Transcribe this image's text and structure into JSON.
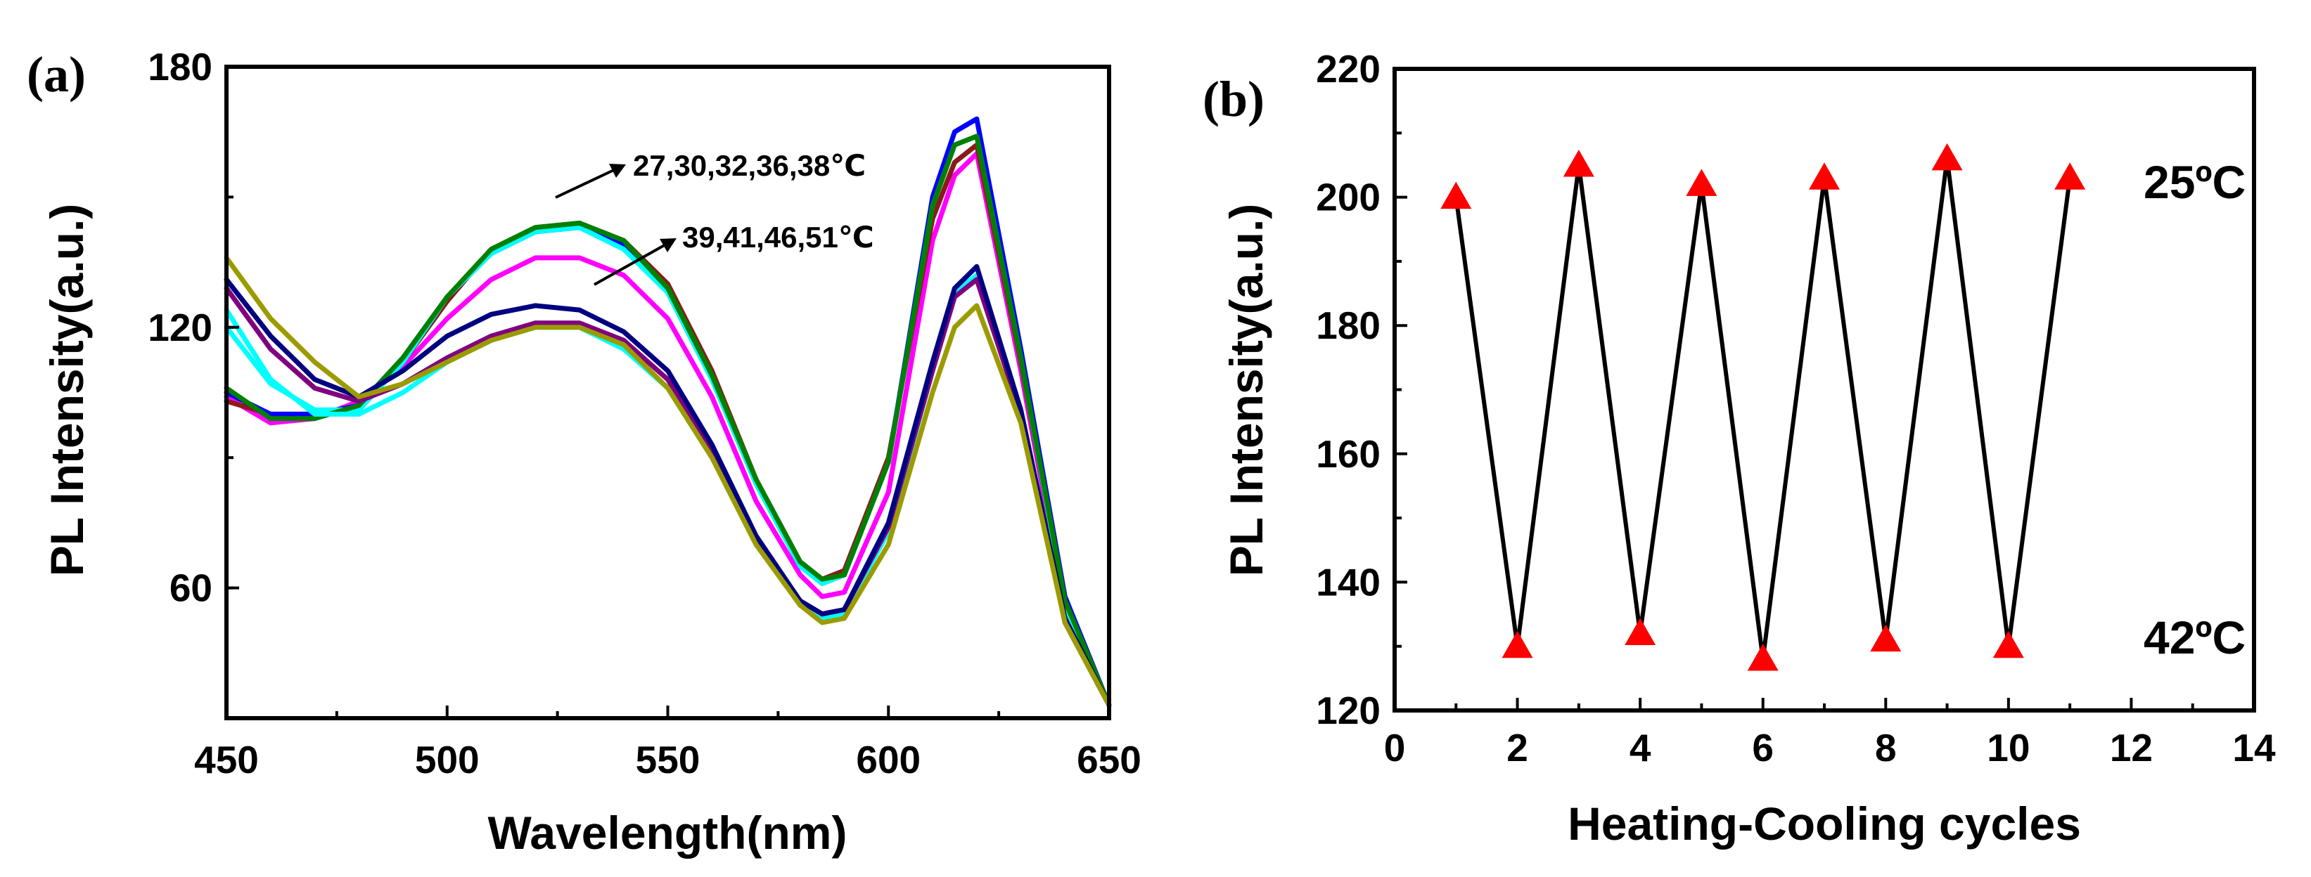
{
  "chart_data": [
    {
      "panel": "(a)",
      "type": "line",
      "title": "",
      "xlabel": "Wavelength(nm)",
      "ylabel": "PL Intensity(a.u.)",
      "xlim": [
        450,
        650
      ],
      "ylim": [
        30,
        180
      ],
      "xticks": [
        450,
        500,
        550,
        600,
        650
      ],
      "yticks": [
        60,
        120,
        180
      ],
      "grid": false,
      "x": [
        450,
        460,
        470,
        480,
        490,
        500,
        510,
        520,
        530,
        540,
        550,
        560,
        570,
        580,
        585,
        590,
        600,
        610,
        615,
        620,
        630,
        640,
        650
      ],
      "series": [
        {
          "name": "27",
          "color": "#ff00ff",
          "values": [
            104,
            98,
            99,
            103,
            111,
            122,
            131,
            136,
            136,
            132,
            122,
            104,
            80,
            63,
            58,
            59,
            82,
            140,
            155,
            160,
            110,
            55,
            33
          ]
        },
        {
          "name": "30",
          "color": "#8b1a1a",
          "values": [
            103,
            100,
            100,
            101,
            112,
            126,
            138,
            143,
            144,
            140,
            130,
            110,
            85,
            66,
            62,
            64,
            90,
            145,
            158,
            162,
            112,
            56,
            33
          ]
        },
        {
          "name": "32",
          "color": "#0000ff",
          "values": [
            105,
            100,
            100,
            102,
            113,
            127,
            137,
            142,
            143,
            139,
            128,
            108,
            84,
            65,
            61,
            63,
            89,
            150,
            165,
            168,
            115,
            58,
            33
          ]
        },
        {
          "name": "36",
          "color": "#00ffff",
          "values": [
            120,
            107,
            101,
            101,
            112,
            127,
            137,
            142,
            143,
            138,
            128,
            108,
            84,
            65,
            61,
            63,
            89,
            148,
            162,
            164,
            113,
            56,
            33
          ]
        },
        {
          "name": "38",
          "color": "#008000",
          "values": [
            106,
            99,
            99,
            102,
            113,
            127,
            138,
            143,
            144,
            140,
            129,
            109,
            85,
            66,
            62,
            63,
            89,
            148,
            162,
            164,
            113,
            57,
            33
          ]
        },
        {
          "name": "39",
          "color": "#00ffff",
          "values": [
            124,
            108,
            100,
            100,
            105,
            112,
            117,
            120,
            120,
            115,
            106,
            90,
            70,
            56,
            53,
            54,
            73,
            110,
            128,
            132,
            100,
            52,
            33
          ]
        },
        {
          "name": "41",
          "color": "#800080",
          "values": [
            129,
            115,
            106,
            103,
            107,
            113,
            118,
            121,
            121,
            117,
            108,
            91,
            71,
            57,
            54,
            55,
            74,
            110,
            127,
            131,
            100,
            52,
            33
          ]
        },
        {
          "name": "46",
          "color": "#000080",
          "values": [
            131,
            118,
            108,
            104,
            110,
            118,
            123,
            125,
            124,
            119,
            110,
            93,
            72,
            57,
            54,
            55,
            75,
            112,
            129,
            134,
            101,
            53,
            33
          ]
        },
        {
          "name": "51",
          "color": "#9b9b00",
          "values": [
            136,
            122,
            112,
            104,
            107,
            112,
            117,
            120,
            120,
            116,
            106,
            90,
            70,
            56,
            52,
            53,
            70,
            105,
            120,
            125,
            98,
            52,
            33
          ]
        }
      ],
      "annotations": [
        "27,30,32,36,38℃",
        "39,41,46,51℃"
      ]
    },
    {
      "panel": "(b)",
      "type": "line",
      "title": "",
      "xlabel": "Heating-Cooling cycles",
      "ylabel": "PL Intensity(a.u.)",
      "xlim": [
        0,
        14
      ],
      "ylim": [
        120,
        220
      ],
      "xticks": [
        0,
        2,
        4,
        6,
        8,
        10,
        12,
        14
      ],
      "yticks": [
        120,
        140,
        160,
        180,
        200,
        220
      ],
      "grid": false,
      "marker": "triangle",
      "marker_color": "#ff0000",
      "x": [
        1,
        2,
        3,
        4,
        5,
        6,
        7,
        8,
        9,
        10,
        11
      ],
      "values": [
        200,
        130,
        205,
        132,
        202,
        128,
        203,
        131,
        206,
        130,
        203
      ],
      "annotations": [
        "25ºC",
        "42ºC"
      ]
    }
  ]
}
